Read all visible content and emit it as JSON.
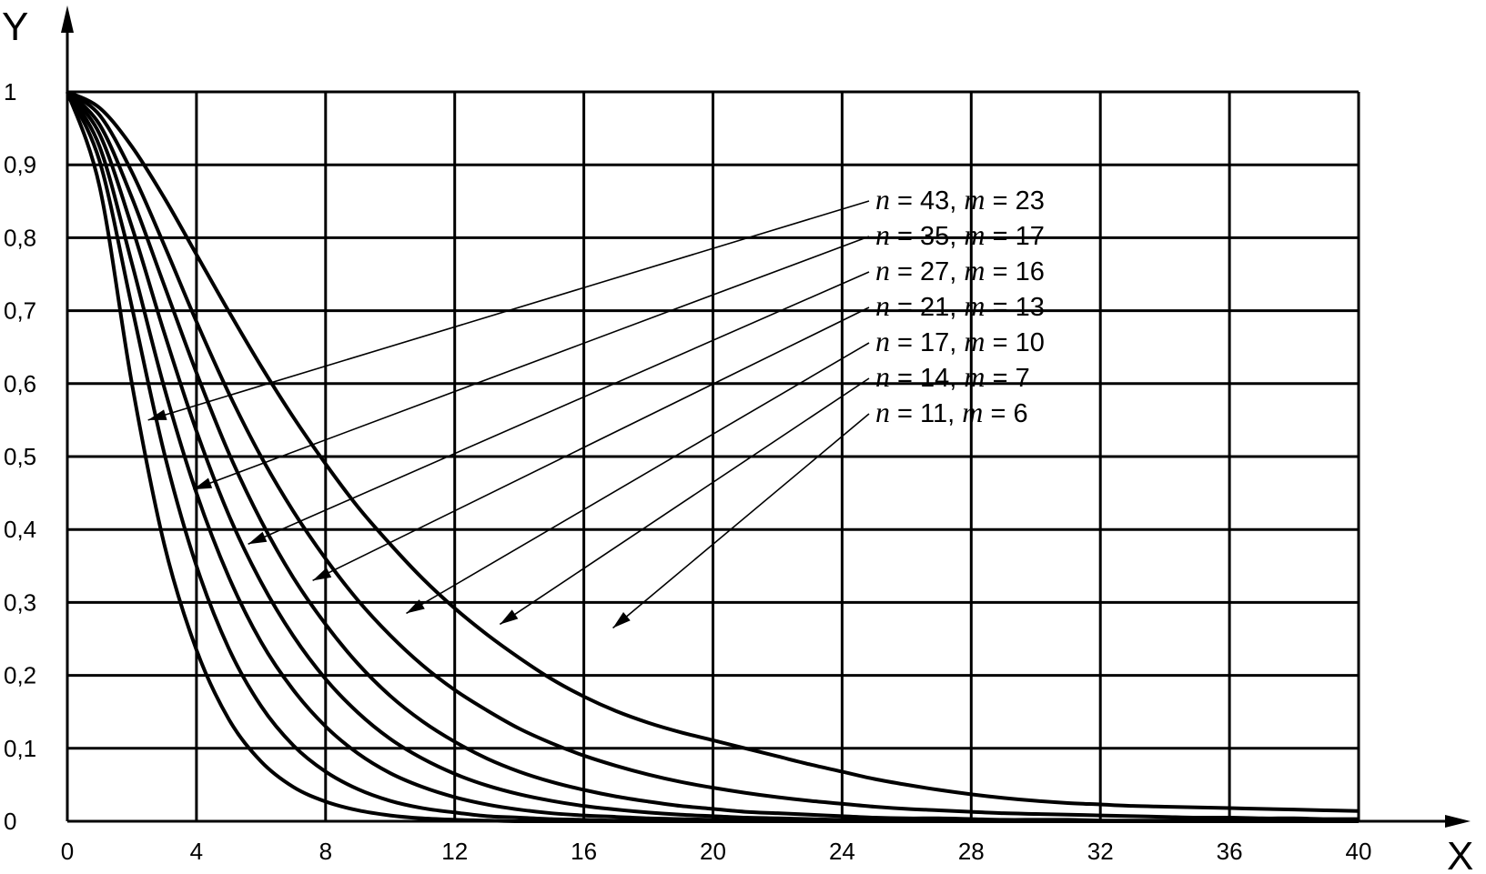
{
  "chart_data": {
    "type": "line",
    "xlabel": "X",
    "ylabel": "Y",
    "xlim": [
      0,
      40
    ],
    "ylim": [
      0,
      1
    ],
    "x_ticks": [
      "0",
      "4",
      "8",
      "12",
      "16",
      "20",
      "24",
      "28",
      "32",
      "36",
      "40"
    ],
    "y_ticks": [
      "0",
      "0,1",
      "0,2",
      "0,3",
      "0,4",
      "0,5",
      "0,6",
      "0,7",
      "0,8",
      "0,9",
      "1"
    ],
    "grid": true,
    "x": [
      0,
      1,
      2,
      3,
      4,
      5,
      6,
      7,
      8,
      9,
      10,
      11,
      12,
      13,
      14,
      15,
      16,
      17,
      18,
      19,
      20,
      21,
      22,
      23,
      24,
      25,
      26,
      27,
      28,
      29,
      30,
      31,
      32,
      33,
      34,
      35,
      36,
      37,
      38,
      39,
      40
    ],
    "series": [
      {
        "label": "n = 43, m = 23",
        "n": "43",
        "m": "23",
        "values": [
          1.0,
          0.978,
          0.925,
          0.855,
          0.777,
          0.699,
          0.624,
          0.554,
          0.49,
          0.431,
          0.38,
          0.333,
          0.292,
          0.256,
          0.224,
          0.195,
          0.171,
          0.151,
          0.135,
          0.122,
          0.111,
          0.1,
          0.089,
          0.078,
          0.068,
          0.058,
          0.05,
          0.043,
          0.037,
          0.032,
          0.028,
          0.025,
          0.023,
          0.021,
          0.02,
          0.019,
          0.018,
          0.017,
          0.016,
          0.015,
          0.014
        ]
      },
      {
        "label": "n = 35, m = 17",
        "n": "35",
        "m": "17",
        "values": [
          1.0,
          0.968,
          0.89,
          0.79,
          0.685,
          0.587,
          0.5,
          0.425,
          0.36,
          0.303,
          0.255,
          0.214,
          0.18,
          0.152,
          0.127,
          0.107,
          0.09,
          0.076,
          0.064,
          0.054,
          0.046,
          0.039,
          0.033,
          0.028,
          0.024,
          0.02,
          0.017,
          0.015,
          0.013,
          0.011,
          0.01,
          0.009,
          0.008,
          0.007,
          0.006,
          0.005,
          0.005,
          0.004,
          0.004,
          0.003,
          0.003
        ]
      },
      {
        "label": "n = 27, m = 16",
        "n": "27",
        "m": "16",
        "values": [
          1.0,
          0.955,
          0.855,
          0.735,
          0.615,
          0.505,
          0.412,
          0.334,
          0.27,
          0.216,
          0.172,
          0.137,
          0.109,
          0.086,
          0.068,
          0.054,
          0.043,
          0.034,
          0.027,
          0.021,
          0.017,
          0.013,
          0.011,
          0.009,
          0.007,
          0.005,
          0.004,
          0.004,
          0.003,
          0.002,
          0.002,
          0.002,
          0.001,
          0.001,
          0.001,
          0.001,
          0.001,
          0.0,
          0.0,
          0.0,
          0.0
        ]
      },
      {
        "label": "n = 21, m = 13",
        "n": "21",
        "m": "13",
        "values": [
          1.0,
          0.942,
          0.815,
          0.67,
          0.535,
          0.42,
          0.328,
          0.254,
          0.195,
          0.149,
          0.113,
          0.086,
          0.065,
          0.049,
          0.037,
          0.028,
          0.021,
          0.016,
          0.012,
          0.009,
          0.007,
          0.005,
          0.004,
          0.003,
          0.002,
          0.002,
          0.001,
          0.001,
          0.001,
          0.0,
          0.0,
          0.0,
          0.0,
          0.0,
          0.0,
          0.0,
          0.0,
          0.0,
          0.0,
          0.0,
          0.0
        ]
      },
      {
        "label": "n = 17, m = 10",
        "n": "17",
        "m": "10",
        "values": [
          1.0,
          0.925,
          0.765,
          0.595,
          0.45,
          0.335,
          0.246,
          0.18,
          0.13,
          0.093,
          0.066,
          0.047,
          0.033,
          0.023,
          0.016,
          0.011,
          0.008,
          0.006,
          0.004,
          0.003,
          0.002,
          0.001,
          0.001,
          0.001,
          0.0,
          0.0,
          0.0,
          0.0,
          0.0,
          0.0,
          0.0,
          0.0,
          0.0,
          0.0,
          0.0,
          0.0,
          0.0,
          0.0,
          0.0,
          0.0,
          0.0
        ]
      },
      {
        "label": "n = 14, m = 7",
        "n": "14",
        "m": "7",
        "values": [
          1.0,
          0.905,
          0.705,
          0.505,
          0.35,
          0.237,
          0.158,
          0.104,
          0.068,
          0.044,
          0.028,
          0.018,
          0.012,
          0.007,
          0.005,
          0.003,
          0.002,
          0.001,
          0.001,
          0.0,
          0.0,
          0.0,
          0.0,
          0.0,
          0.0,
          0.0,
          0.0,
          0.0,
          0.0,
          0.0,
          0.0,
          0.0,
          0.0,
          0.0,
          0.0,
          0.0,
          0.0,
          0.0,
          0.0,
          0.0,
          0.0
        ]
      },
      {
        "label": "n = 11, m = 6",
        "n": "11",
        "m": "6",
        "values": [
          1.0,
          0.87,
          0.6,
          0.38,
          0.235,
          0.14,
          0.082,
          0.047,
          0.027,
          0.015,
          0.008,
          0.004,
          0.002,
          0.001,
          0.0,
          0.0,
          0.0,
          0.0,
          0.0,
          0.0,
          0.0,
          0.0,
          0.0,
          0.0,
          0.0,
          0.0,
          0.0,
          0.0,
          0.0,
          0.0,
          0.0,
          0.0,
          0.0,
          0.0,
          0.0,
          0.0,
          0.0,
          0.0,
          0.0,
          0.0,
          0.0
        ]
      }
    ],
    "annotations": [
      {
        "series": "n = 43, m = 23",
        "point_to": [
          2.5,
          0.55
        ]
      },
      {
        "series": "n = 35, m = 17",
        "point_to": [
          3.9,
          0.455
        ]
      },
      {
        "series": "n = 27, m = 16",
        "point_to": [
          5.6,
          0.38
        ]
      },
      {
        "series": "n = 21, m = 13",
        "point_to": [
          7.6,
          0.33
        ]
      },
      {
        "series": "n = 17, m = 10",
        "point_to": [
          10.5,
          0.285
        ]
      },
      {
        "series": "n = 14, m = 7",
        "point_to": [
          13.4,
          0.27
        ]
      },
      {
        "series": "n = 11, m = 6",
        "point_to": [
          16.9,
          0.265
        ]
      }
    ]
  }
}
